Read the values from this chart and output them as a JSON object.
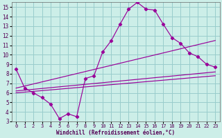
{
  "xlabel": "Windchill (Refroidissement éolien,°C)",
  "background_color": "#cceee8",
  "grid_color": "#99cccc",
  "line_color": "#990099",
  "xlim": [
    -0.5,
    23.5
  ],
  "ylim": [
    3,
    15.5
  ],
  "xticks": [
    0,
    1,
    2,
    3,
    4,
    5,
    6,
    7,
    8,
    9,
    10,
    11,
    12,
    13,
    14,
    15,
    16,
    17,
    18,
    19,
    20,
    21,
    22,
    23
  ],
  "yticks": [
    3,
    4,
    5,
    6,
    7,
    8,
    9,
    10,
    11,
    12,
    13,
    14,
    15
  ],
  "line1_x": [
    0,
    1,
    2,
    3,
    4,
    5,
    6,
    7,
    8,
    9,
    10,
    11,
    12,
    13,
    14,
    15,
    16,
    17,
    18,
    19,
    20,
    21,
    22,
    23
  ],
  "line1_y": [
    8.5,
    6.5,
    6.0,
    5.5,
    4.8,
    3.3,
    3.8,
    3.5,
    7.5,
    7.8,
    10.3,
    11.5,
    13.2,
    14.8,
    15.5,
    14.8,
    14.7,
    13.2,
    11.8,
    11.2,
    10.2,
    9.8,
    9.0,
    8.7
  ],
  "line2_x": [
    0,
    23
  ],
  "line2_y": [
    6.5,
    11.5
  ],
  "line3_x": [
    0,
    23
  ],
  "line3_y": [
    6.2,
    8.2
  ],
  "line4_x": [
    0,
    23
  ],
  "line4_y": [
    6.0,
    7.8
  ]
}
